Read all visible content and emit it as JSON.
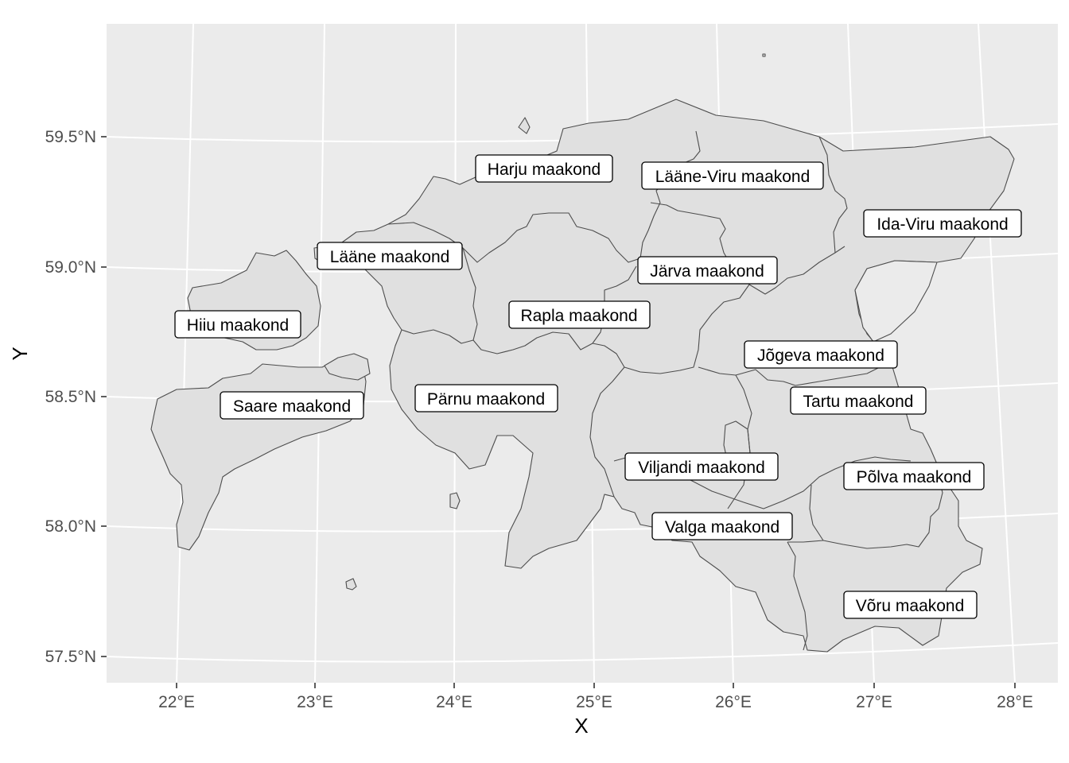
{
  "axes": {
    "x_title": "X",
    "y_title": "Y",
    "x_ticks": [
      "22°E",
      "23°E",
      "24°E",
      "25°E",
      "26°E",
      "27°E",
      "28°E"
    ],
    "y_ticks": [
      "59.5°N",
      "59.0°N",
      "58.5°N",
      "58.0°N",
      "57.5°N"
    ]
  },
  "counties": [
    {
      "name": "Harju maakond"
    },
    {
      "name": "Lääne-Viru maakond"
    },
    {
      "name": "Ida-Viru maakond"
    },
    {
      "name": "Lääne maakond"
    },
    {
      "name": "Järva maakond"
    },
    {
      "name": "Hiiu maakond"
    },
    {
      "name": "Rapla maakond"
    },
    {
      "name": "Jõgeva maakond"
    },
    {
      "name": "Pärnu maakond"
    },
    {
      "name": "Saare maakond"
    },
    {
      "name": "Tartu maakond"
    },
    {
      "name": "Viljandi maakond"
    },
    {
      "name": "Põlva maakond"
    },
    {
      "name": "Valga maakond"
    },
    {
      "name": "Võru maakond"
    }
  ],
  "colors": {
    "panel_background": "#ebebeb",
    "gridline": "#ffffff",
    "land_fill": "#e0e0e0",
    "border": "#4d4d4d",
    "label_fill": "#ffffff",
    "label_border": "#000000"
  }
}
